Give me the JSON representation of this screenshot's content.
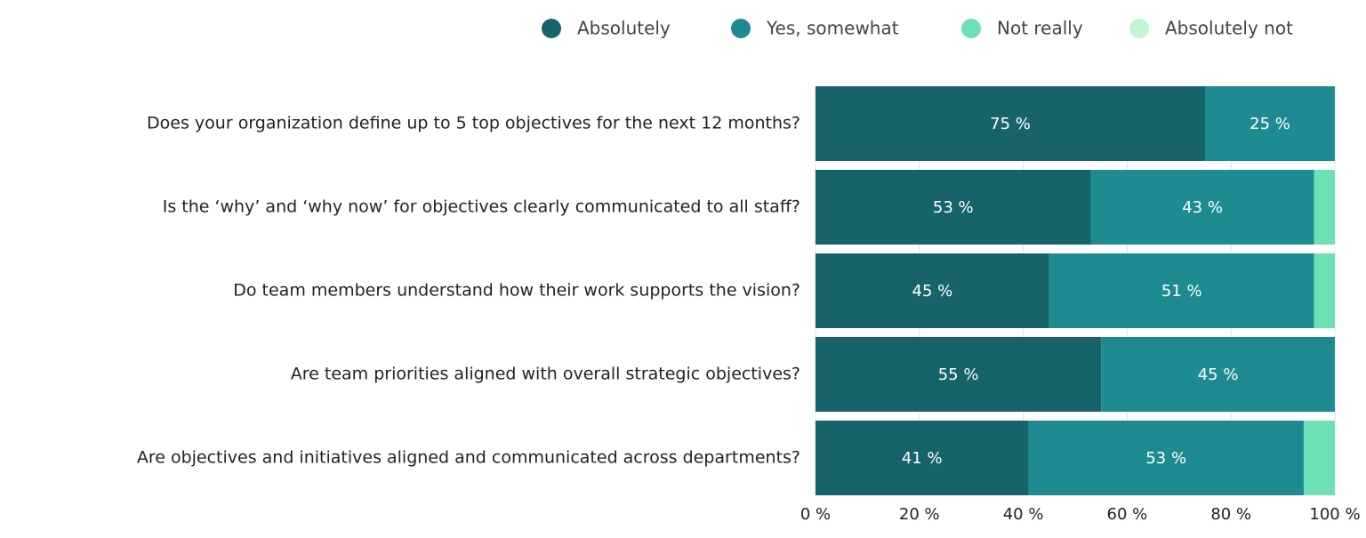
{
  "chart_data": {
    "type": "stacked-bar-horizontal",
    "categories": [
      "Does your organization define up to 5 top objectives for the next 12 months?",
      "Is the ‘why’ and ‘why now’ for objectives clearly communicated to all staff?",
      "Do team members understand how their work supports the vision?",
      "Are team priorities aligned with overall strategic objectives?",
      "Are objectives and initiatives aligned and communicated across departments?"
    ],
    "series": [
      {
        "name": "Absolutely",
        "color": "#16636a",
        "values": [
          75,
          53,
          45,
          55,
          41
        ],
        "value_labels": [
          "75 %",
          "53 %",
          "45 %",
          "55 %",
          "41 %"
        ]
      },
      {
        "name": "Yes, somewhat",
        "color": "#1e8a92",
        "values": [
          25,
          43,
          51,
          45,
          53
        ],
        "value_labels": [
          "25 %",
          "43 %",
          "51 %",
          "45 %",
          "53 %"
        ]
      },
      {
        "name": "Not really",
        "color": "#6ee0b5",
        "values": [
          0,
          4,
          4,
          0,
          6
        ]
      },
      {
        "name": "Absolutely not",
        "color": "#c0f5d5",
        "values": [
          0,
          0,
          0,
          0,
          0
        ]
      }
    ],
    "xlim": [
      0,
      100
    ],
    "xticks": [
      {
        "value": 0,
        "label": "0 %"
      },
      {
        "value": 20,
        "label": "20 %"
      },
      {
        "value": 40,
        "label": "40 %"
      },
      {
        "value": 60,
        "label": "60 %"
      },
      {
        "value": 80,
        "label": "80 %"
      },
      {
        "value": 100,
        "label": "100 %"
      }
    ],
    "grid": true,
    "legend": "top"
  }
}
